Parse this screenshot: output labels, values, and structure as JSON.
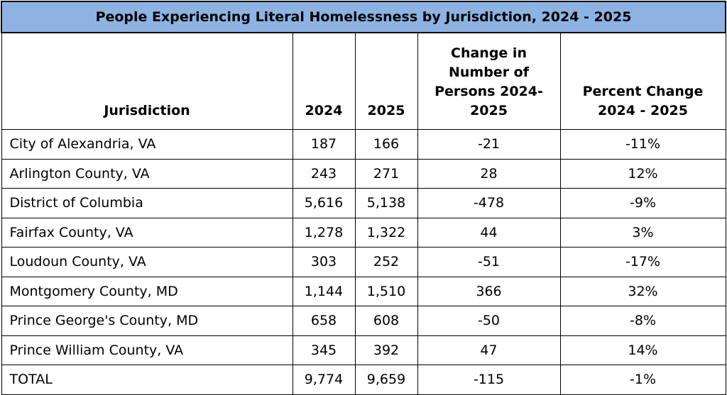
{
  "title": "People Experiencing Literal Homelessness by Jurisdiction, 2024 - 2025",
  "columns": {
    "jurisdiction": "Jurisdiction",
    "y2024": "2024",
    "y2025": "2025",
    "change": "Change in Number of Persons 2024-2025",
    "percent": "Percent Change 2024 - 2025"
  },
  "rows": [
    {
      "name": "City of Alexandria, VA",
      "y2024": "187",
      "y2025": "166",
      "change": "-21",
      "percent": "-11%"
    },
    {
      "name": "Arlington County, VA",
      "y2024": "243",
      "y2025": "271",
      "change": "28",
      "percent": "12%"
    },
    {
      "name": "District of Columbia",
      "y2024": "5,616",
      "y2025": "5,138",
      "change": "-478",
      "percent": "-9%"
    },
    {
      "name": "Fairfax County, VA",
      "y2024": "1,278",
      "y2025": "1,322",
      "change": "44",
      "percent": "3%"
    },
    {
      "name": "Loudoun County, VA",
      "y2024": "303",
      "y2025": "252",
      "change": "-51",
      "percent": "-17%"
    },
    {
      "name": "Montgomery County, MD",
      "y2024": "1,144",
      "y2025": "1,510",
      "change": "366",
      "percent": "32%"
    },
    {
      "name": "Prince George's County, MD",
      "y2024": "658",
      "y2025": "608",
      "change": "-50",
      "percent": "-8%"
    },
    {
      "name": "Prince William County, VA",
      "y2024": "345",
      "y2025": "392",
      "change": "47",
      "percent": "14%"
    },
    {
      "name": "TOTAL",
      "y2024": "9,774",
      "y2025": "9,659",
      "change": "-115",
      "percent": "-1%"
    }
  ]
}
